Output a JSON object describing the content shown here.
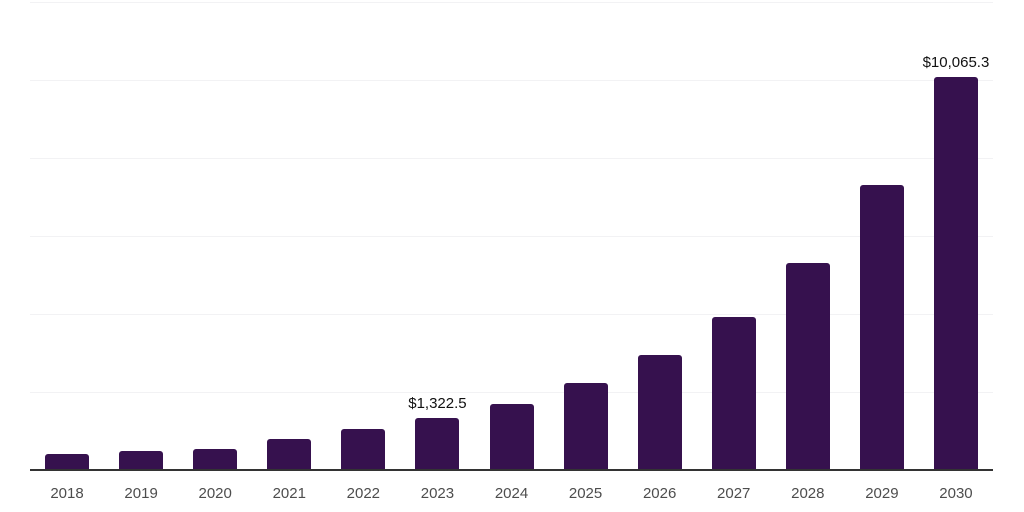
{
  "chart": {
    "background_color": "#ffffff",
    "bar_color": "#36114e",
    "axis_line_color": "#333333",
    "gridline_color": "#f2f2f4",
    "tick_label_color": "#4d4d4d",
    "data_label_color": "#111111"
  },
  "chart_data": {
    "type": "bar",
    "title": "",
    "xlabel": "",
    "ylabel": "",
    "categories": [
      "2018",
      "2019",
      "2020",
      "2021",
      "2022",
      "2023",
      "2024",
      "2025",
      "2026",
      "2027",
      "2028",
      "2029",
      "2030"
    ],
    "values": [
      415,
      475,
      550,
      805,
      1040,
      1322.5,
      1690,
      2240,
      2950,
      3930,
      5310,
      7300,
      10065.3
    ],
    "data_labels": {
      "2023": "$1,322.5",
      "2030": "$10,065.3"
    },
    "ylim": [
      0,
      12000
    ],
    "gridline_interval": 2000,
    "grid": "horizontal",
    "legend_position": "none",
    "y_axis_tick_labels_visible": false
  }
}
